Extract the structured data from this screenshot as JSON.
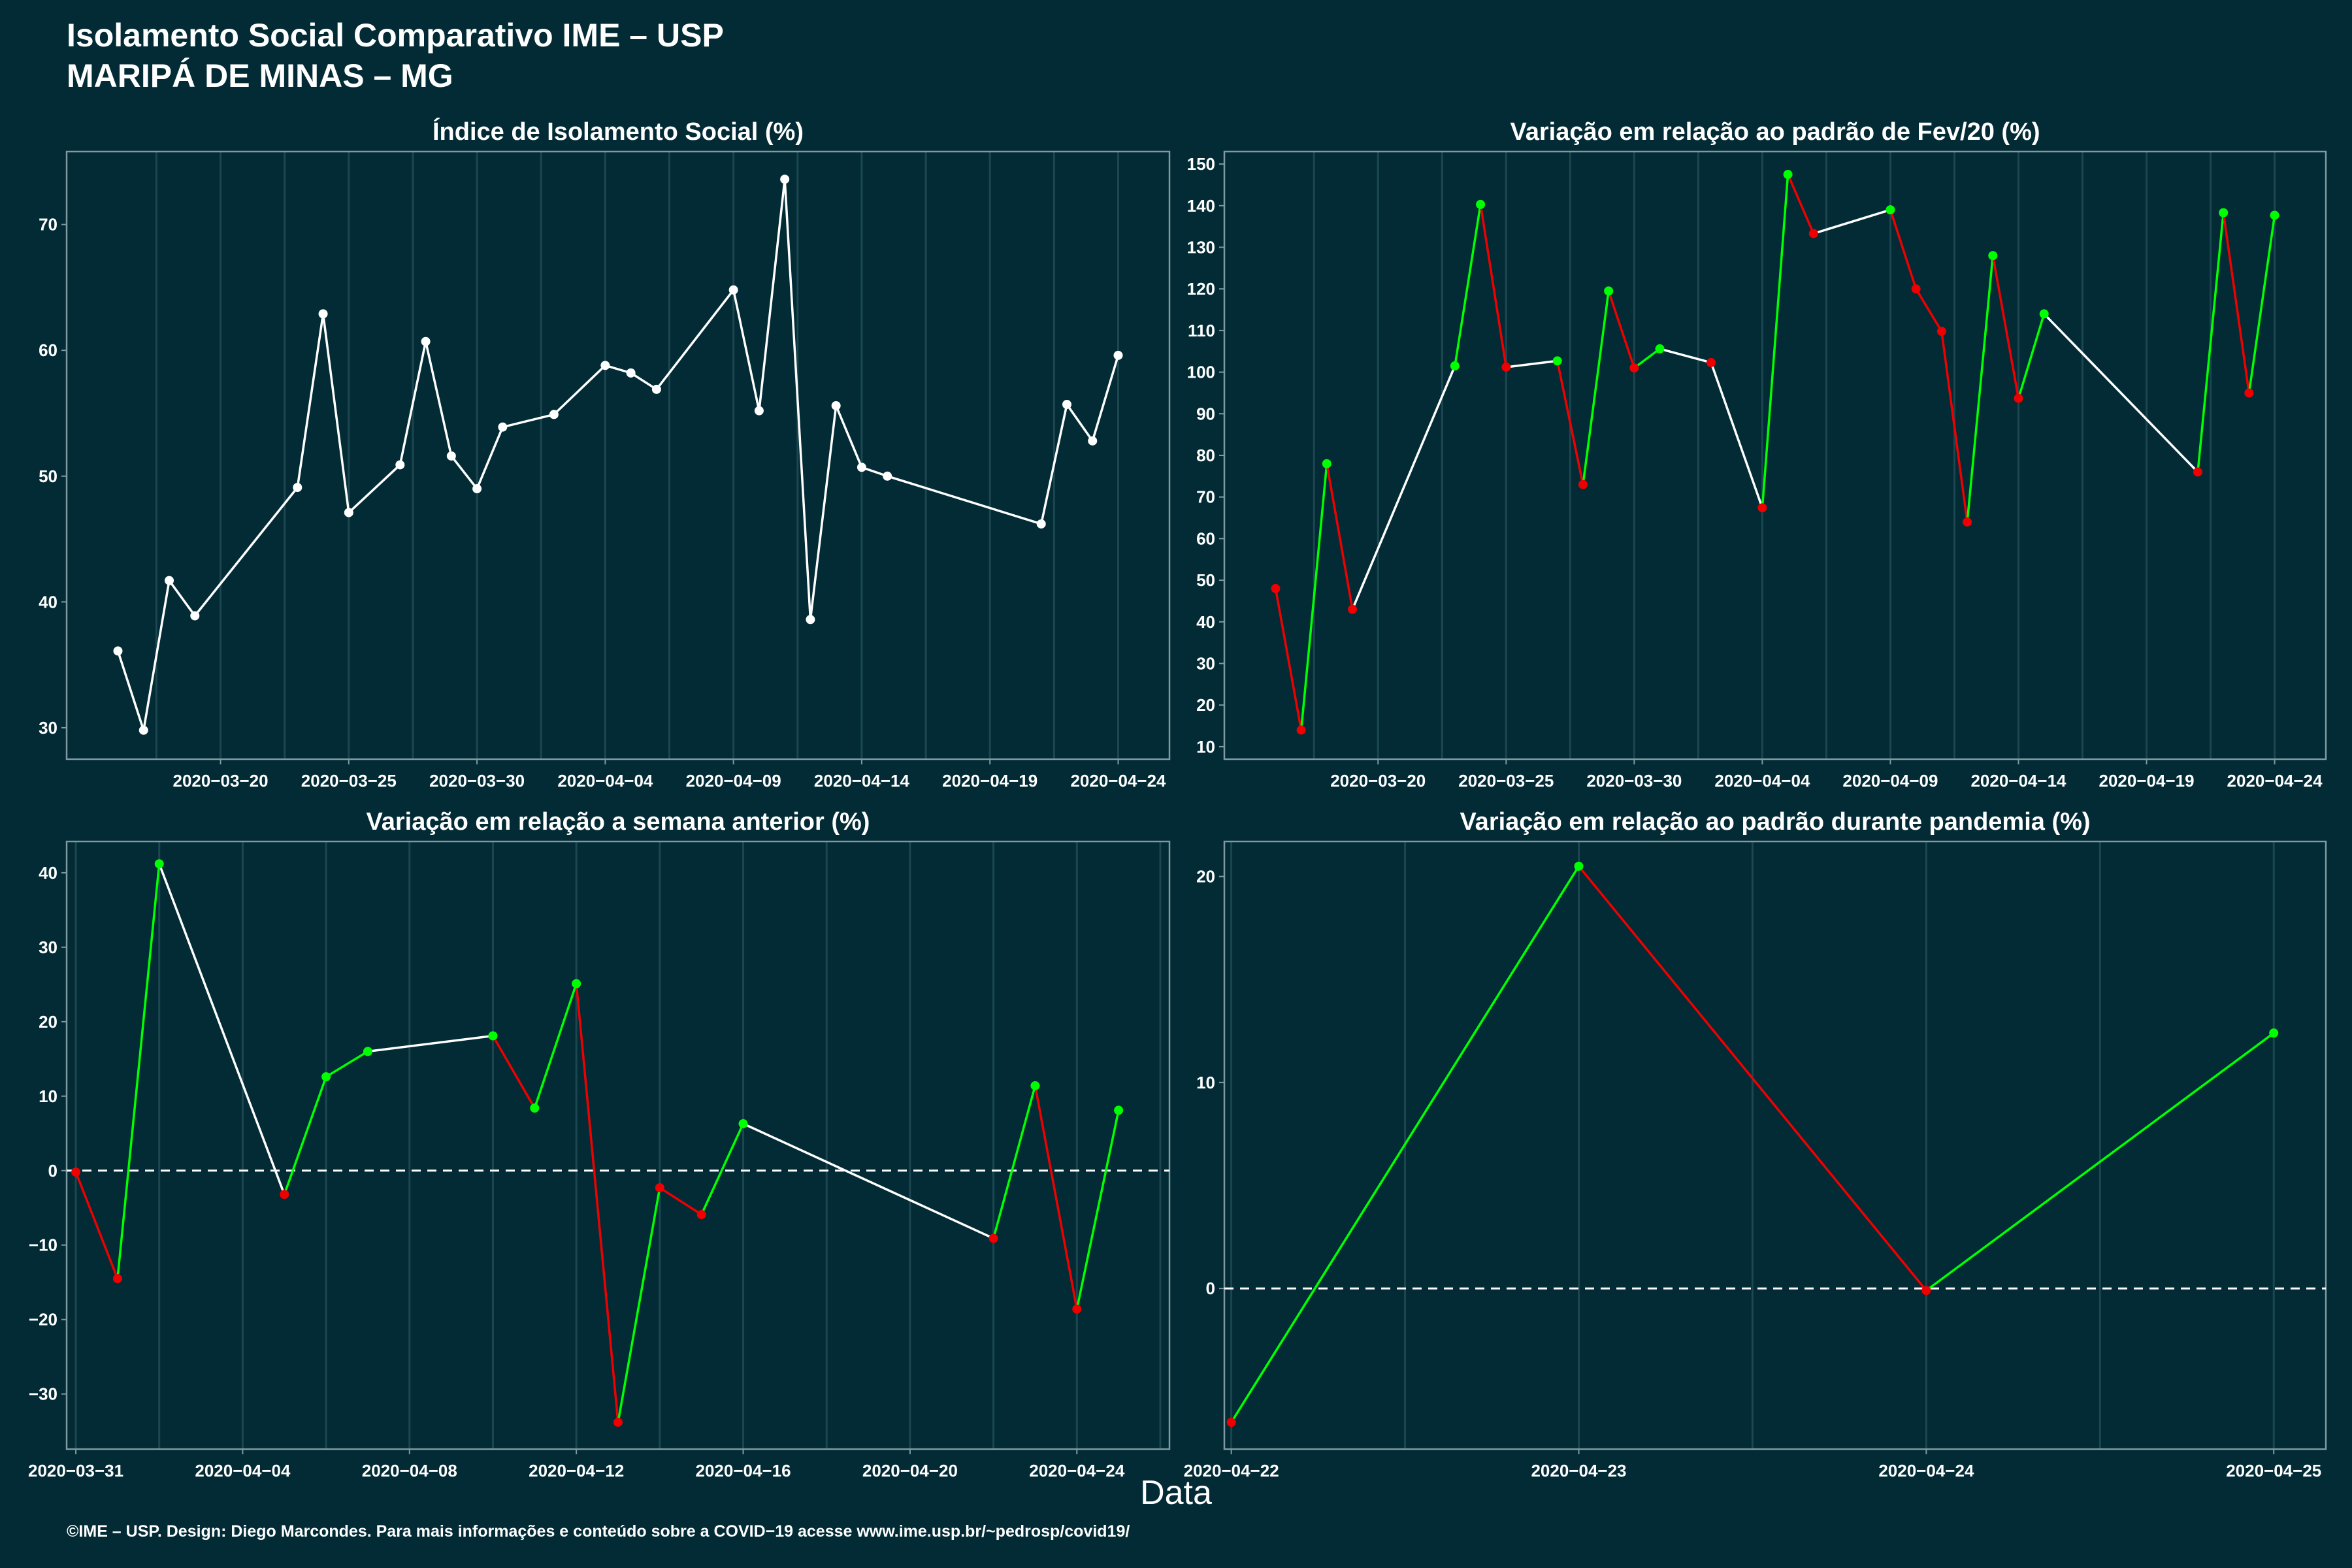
{
  "header": {
    "title": "Isolamento Social Comparativo IME – USP",
    "subtitle": "MARIPÁ DE MINAS – MG"
  },
  "shared_xlabel": "Data",
  "footer": "©IME – USP. Design: Diego Marcondes. Para mais informações e conteúdo sobre a COVID−19 acesse www.ime.usp.br/~pedrosp/covid19/",
  "colors": {
    "background": "#022b35",
    "panel_border": "#7f9aa0",
    "grid": "#1c4650",
    "line_white": "#ffffff",
    "up": "#00ff00",
    "down": "#ee0000"
  },
  "chart_data": [
    {
      "type": "line",
      "title": "Índice de Isolamento Social (%)",
      "x": [
        "2020-03-16",
        "2020-03-17",
        "2020-03-18",
        "2020-03-19",
        "2020-03-23",
        "2020-03-24",
        "2020-03-25",
        "2020-03-27",
        "2020-03-28",
        "2020-03-29",
        "2020-03-30",
        "2020-03-31",
        "2020-04-02",
        "2020-04-04",
        "2020-04-05",
        "2020-04-06",
        "2020-04-09",
        "2020-04-10",
        "2020-04-11",
        "2020-04-12",
        "2020-04-13",
        "2020-04-14",
        "2020-04-15",
        "2020-04-21",
        "2020-04-22",
        "2020-04-23",
        "2020-04-24"
      ],
      "values": [
        36.1,
        29.8,
        41.7,
        38.9,
        49.1,
        62.9,
        47.1,
        50.9,
        60.7,
        51.6,
        49.0,
        53.9,
        54.9,
        58.8,
        58.2,
        56.9,
        64.8,
        55.2,
        73.6,
        38.6,
        55.6,
        50.7,
        50.0,
        46.2,
        55.7,
        52.8,
        59.6
      ],
      "coloring": "white",
      "xlim": [
        "2020-03-14",
        "2020-04-26"
      ],
      "ylim": [
        27.5,
        75.8
      ],
      "x_ticks": [
        "2020-03-20",
        "2020-03-25",
        "2020-03-30",
        "2020-04-04",
        "2020-04-09",
        "2020-04-14",
        "2020-04-19",
        "2020-04-24"
      ],
      "y_ticks": [
        30,
        40,
        50,
        60,
        70
      ],
      "zero_line": false
    },
    {
      "type": "line",
      "title": "Variação em relação ao padrão de Fev/20 (%)",
      "x": [
        "2020-03-16",
        "2020-03-17",
        "2020-03-18",
        "2020-03-19",
        "2020-03-23",
        "2020-03-24",
        "2020-03-25",
        "2020-03-27",
        "2020-03-28",
        "2020-03-29",
        "2020-03-30",
        "2020-03-31",
        "2020-04-02",
        "2020-04-04",
        "2020-04-05",
        "2020-04-06",
        "2020-04-09",
        "2020-04-10",
        "2020-04-11",
        "2020-04-12",
        "2020-04-13",
        "2020-04-14",
        "2020-04-15",
        "2020-04-21",
        "2020-04-22",
        "2020-04-23",
        "2020-04-24"
      ],
      "values": [
        48,
        14,
        78,
        43,
        101.5,
        140.3,
        101.2,
        102.7,
        73,
        119.5,
        101,
        105.6,
        102.3,
        67.4,
        147.5,
        133.3,
        139,
        120,
        109.8,
        64,
        128,
        93.7,
        114,
        76,
        138.3,
        95,
        137.7
      ],
      "coloring": "trend",
      "xlim": [
        "2020-03-14",
        "2020-04-26"
      ],
      "ylim": [
        7,
        153
      ],
      "x_ticks": [
        "2020-03-20",
        "2020-03-25",
        "2020-03-30",
        "2020-04-04",
        "2020-04-09",
        "2020-04-14",
        "2020-04-19",
        "2020-04-24"
      ],
      "y_ticks": [
        10,
        20,
        30,
        40,
        50,
        60,
        70,
        80,
        90,
        100,
        110,
        120,
        130,
        140,
        150
      ],
      "zero_line": false
    },
    {
      "type": "line",
      "title": "Variação em relação a semana anterior (%)",
      "x": [
        "2020-03-31",
        "2020-04-01",
        "2020-04-02",
        "2020-04-05",
        "2020-04-06",
        "2020-04-07",
        "2020-04-10",
        "2020-04-11",
        "2020-04-12",
        "2020-04-13",
        "2020-04-14",
        "2020-04-15",
        "2020-04-16",
        "2020-04-22",
        "2020-04-23",
        "2020-04-24",
        "2020-04-25"
      ],
      "values": [
        -0.2,
        -14.5,
        41.2,
        -3.2,
        12.6,
        16,
        18.1,
        8.4,
        25.1,
        -33.8,
        -2.3,
        -5.9,
        6.3,
        -9.1,
        11.4,
        -18.6,
        8.1
      ],
      "coloring": "trend",
      "xlim": [
        "2020-03-30.78",
        "2020-04-26.22"
      ],
      "ylim": [
        -37.4,
        44.2
      ],
      "x_ticks": [
        "2020-03-31",
        "2020-04-04",
        "2020-04-08",
        "2020-04-12",
        "2020-04-16",
        "2020-04-20",
        "2020-04-24"
      ],
      "y_ticks": [
        -30,
        -20,
        -10,
        0,
        10,
        20,
        30,
        40
      ],
      "zero_line": true
    },
    {
      "type": "line",
      "title": "Variação em relação ao padrão durante pandemia (%)",
      "x": [
        "2020-04-22",
        "2020-04-23",
        "2020-04-24",
        "2020-04-25"
      ],
      "values": [
        -6.5,
        20.5,
        -0.1,
        12.4
      ],
      "coloring": "trend",
      "xlim": [
        "2020-04-21.98",
        "2020-04-25.15"
      ],
      "ylim": [
        -7.8,
        21.7
      ],
      "x_ticks": [
        "2020-04-22",
        "2020-04-23",
        "2020-04-24",
        "2020-04-25"
      ],
      "y_ticks": [
        0,
        10,
        20
      ],
      "zero_line": true
    }
  ]
}
